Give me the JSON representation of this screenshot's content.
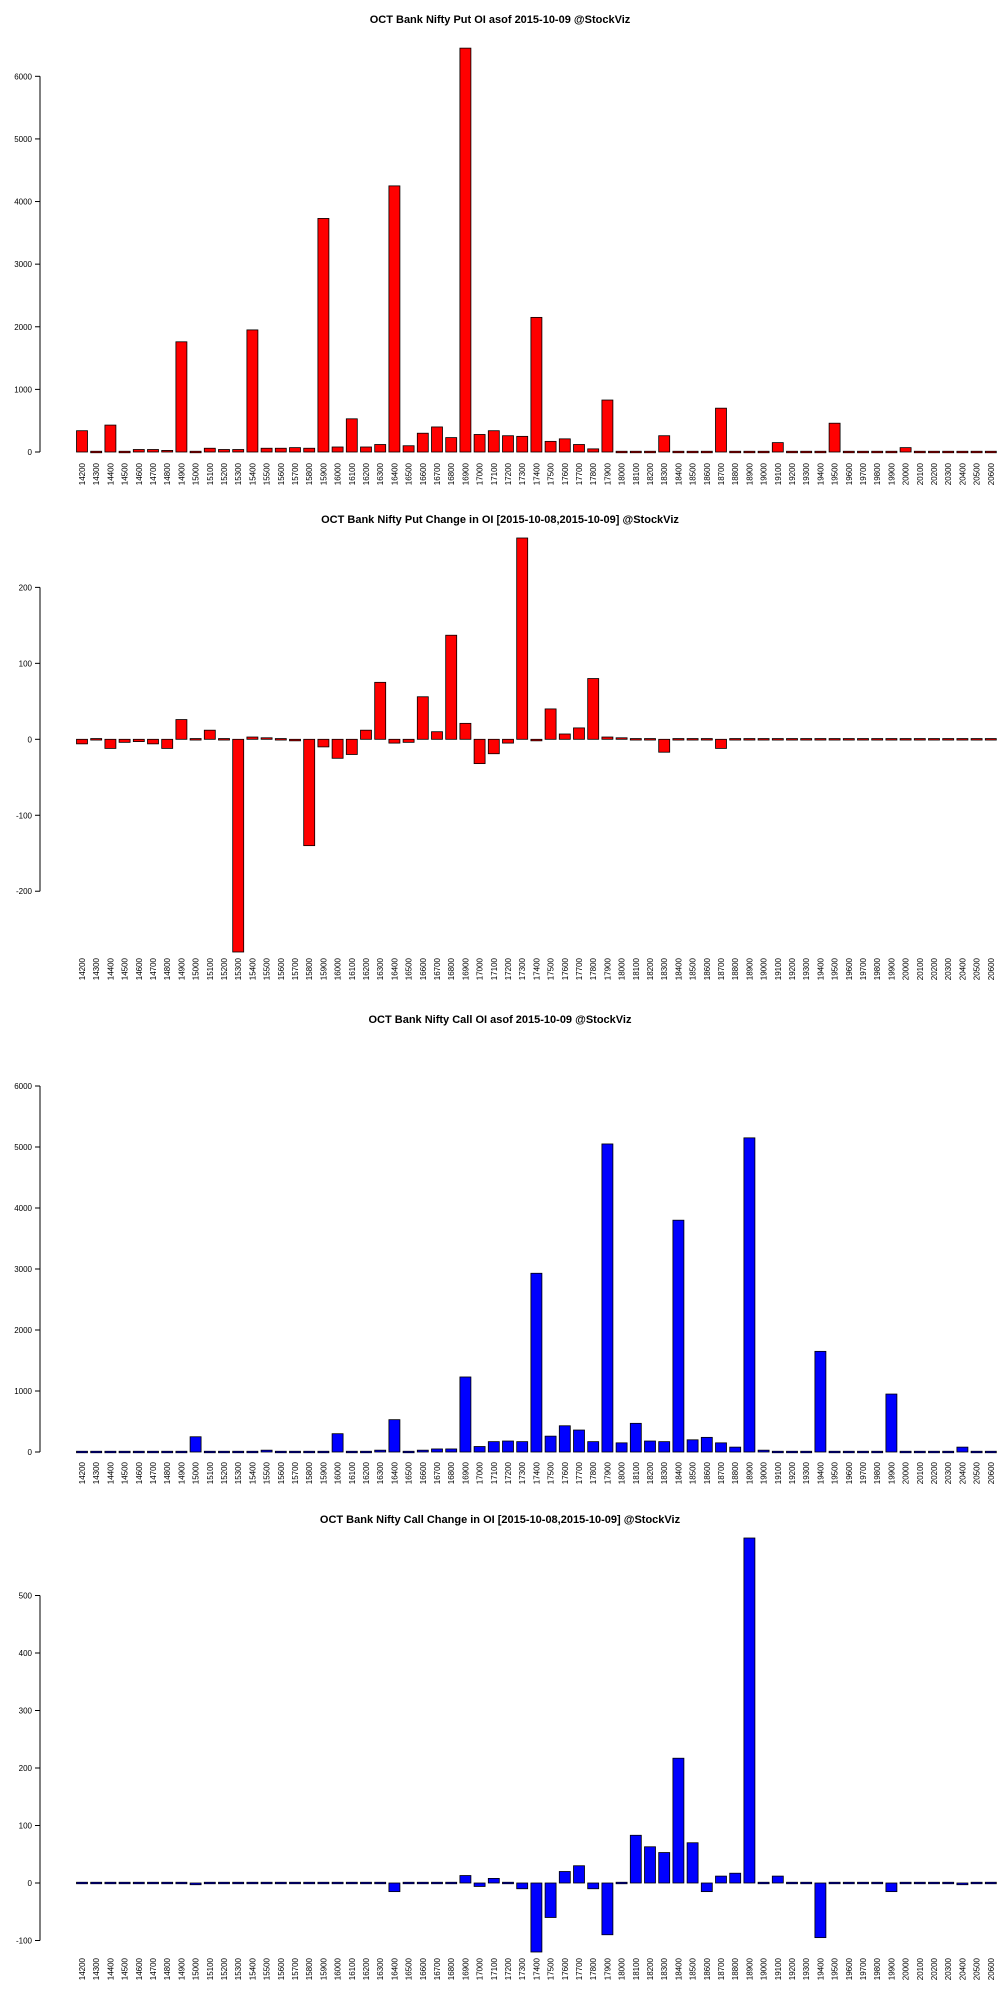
{
  "chart_data": [
    {
      "type": "bar",
      "title": "OCT Bank Nifty Put OI asof 2015-10-09 @StockViz",
      "fill": "#ff0000",
      "ylim": [
        0,
        6500
      ],
      "yticks": [
        0,
        1000,
        2000,
        3000,
        4000,
        5000,
        6000
      ],
      "categories": [
        "14200",
        "14300",
        "14400",
        "14500",
        "14600",
        "14700",
        "14800",
        "14900",
        "15000",
        "15100",
        "15200",
        "15300",
        "15400",
        "15500",
        "15600",
        "15700",
        "15800",
        "15900",
        "16000",
        "16100",
        "16200",
        "16300",
        "16400",
        "16500",
        "16600",
        "16700",
        "16800",
        "16900",
        "17000",
        "17100",
        "17200",
        "17300",
        "17400",
        "17500",
        "17600",
        "17700",
        "17800",
        "17900",
        "18000",
        "18100",
        "18200",
        "18300",
        "18400",
        "18500",
        "18600",
        "18700",
        "18800",
        "18900",
        "19000",
        "19100",
        "19200",
        "19300",
        "19400",
        "19500",
        "19600",
        "19700",
        "19800",
        "19900",
        "20000",
        "20100",
        "20200",
        "20300",
        "20400",
        "20500",
        "20600"
      ],
      "values": [
        340,
        10,
        430,
        20,
        40,
        40,
        25,
        1760,
        20,
        60,
        40,
        40,
        1950,
        60,
        60,
        70,
        60,
        3730,
        80,
        530,
        80,
        120,
        4250,
        100,
        300,
        400,
        230,
        6450,
        280,
        340,
        260,
        250,
        2150,
        170,
        210,
        120,
        50,
        830,
        10,
        20,
        10,
        260,
        10,
        10,
        10,
        700,
        10,
        10,
        10,
        150,
        10,
        10,
        10,
        460,
        10,
        10,
        10,
        10,
        70,
        0,
        0,
        0,
        0,
        0,
        0
      ]
    },
    {
      "type": "bar",
      "title": "OCT Bank Nifty Put Change in OI [2015-10-08,2015-10-09] @StockViz",
      "fill": "#ff0000",
      "ylim": [
        -280,
        265
      ],
      "yticks": [
        -200,
        -100,
        0,
        100,
        200
      ],
      "categories": [
        "14200",
        "14300",
        "14400",
        "14500",
        "14600",
        "14700",
        "14800",
        "14900",
        "15000",
        "15100",
        "15200",
        "15300",
        "15400",
        "15500",
        "15600",
        "15700",
        "15800",
        "15900",
        "16000",
        "16100",
        "16200",
        "16300",
        "16400",
        "16500",
        "16600",
        "16700",
        "16800",
        "16900",
        "17000",
        "17100",
        "17200",
        "17300",
        "17400",
        "17500",
        "17600",
        "17700",
        "17800",
        "17900",
        "18000",
        "18100",
        "18200",
        "18300",
        "18400",
        "18500",
        "18600",
        "18700",
        "18800",
        "18900",
        "19000",
        "19100",
        "19200",
        "19300",
        "19400",
        "19500",
        "19600",
        "19700",
        "19800",
        "19900",
        "20000",
        "20100",
        "20200",
        "20300",
        "20400",
        "20500",
        "20600"
      ],
      "values": [
        -6,
        0,
        -12,
        -4,
        -3,
        -6,
        -12,
        26,
        0,
        12,
        0,
        -280,
        3,
        2,
        -1,
        -2,
        -140,
        -10,
        -25,
        -20,
        12,
        75,
        -5,
        -4,
        56,
        10,
        137,
        21,
        -32,
        -19,
        -5,
        265,
        -2,
        40,
        7,
        15,
        80,
        3,
        2,
        0,
        0,
        -17,
        0,
        0,
        0,
        -12,
        0,
        0,
        0,
        0,
        0,
        0,
        0,
        0,
        0,
        0,
        0,
        0,
        0,
        0,
        0,
        0,
        0,
        0,
        0
      ]
    },
    {
      "type": "bar",
      "title": "OCT Bank Nifty Call OI asof 2015-10-09 @StockViz",
      "fill": "#0000ff",
      "ylim": [
        0,
        6000
      ],
      "yticks": [
        0,
        1000,
        2000,
        3000,
        4000,
        5000,
        6000
      ],
      "categories": [
        "14200",
        "14300",
        "14400",
        "14500",
        "14600",
        "14700",
        "14800",
        "14900",
        "15000",
        "15100",
        "15200",
        "15300",
        "15400",
        "15500",
        "15600",
        "15700",
        "15800",
        "15900",
        "16000",
        "16100",
        "16200",
        "16300",
        "16400",
        "16500",
        "16600",
        "16700",
        "16800",
        "16900",
        "17000",
        "17100",
        "17200",
        "17300",
        "17400",
        "17500",
        "17600",
        "17700",
        "17800",
        "17900",
        "18000",
        "18100",
        "18200",
        "18300",
        "18400",
        "18500",
        "18600",
        "18700",
        "18800",
        "18900",
        "19000",
        "19100",
        "19200",
        "19300",
        "19400",
        "19500",
        "19600",
        "19700",
        "19800",
        "19900",
        "20000",
        "20100",
        "20200",
        "20300",
        "20400",
        "20500",
        "20600"
      ],
      "values": [
        10,
        0,
        0,
        0,
        0,
        0,
        0,
        0,
        250,
        0,
        10,
        0,
        0,
        30,
        0,
        0,
        0,
        0,
        300,
        0,
        10,
        30,
        530,
        0,
        30,
        50,
        50,
        1230,
        90,
        170,
        180,
        170,
        2930,
        260,
        430,
        360,
        170,
        5050,
        150,
        470,
        180,
        170,
        3800,
        200,
        240,
        150,
        80,
        5150,
        30,
        10,
        0,
        0,
        1650,
        0,
        0,
        0,
        0,
        950,
        0,
        0,
        0,
        0,
        80,
        0,
        0
      ]
    },
    {
      "type": "bar",
      "title": "OCT Bank Nifty Call Change in OI [2015-10-08,2015-10-09] @StockViz",
      "fill": "#0000ff",
      "ylim": [
        -120,
        600
      ],
      "yticks": [
        -100,
        0,
        100,
        200,
        300,
        400,
        500
      ],
      "categories": [
        "14200",
        "14300",
        "14400",
        "14500",
        "14600",
        "14700",
        "14800",
        "14900",
        "15000",
        "15100",
        "15200",
        "15300",
        "15400",
        "15500",
        "15600",
        "15700",
        "15800",
        "15900",
        "16000",
        "16100",
        "16200",
        "16300",
        "16400",
        "16500",
        "16600",
        "16700",
        "16800",
        "16900",
        "17000",
        "17100",
        "17200",
        "17300",
        "17400",
        "17500",
        "17600",
        "17700",
        "17800",
        "17900",
        "18000",
        "18100",
        "18200",
        "18300",
        "18400",
        "18500",
        "18600",
        "18700",
        "18800",
        "18900",
        "19000",
        "19100",
        "19200",
        "19300",
        "19400",
        "19500",
        "19600",
        "19700",
        "19800",
        "19900",
        "20000",
        "20100",
        "20200",
        "20300",
        "20400",
        "20500",
        "20600"
      ],
      "values": [
        0,
        0,
        0,
        0,
        0,
        0,
        0,
        0,
        -3,
        0,
        0,
        0,
        0,
        0,
        0,
        0,
        0,
        0,
        0,
        0,
        0,
        0,
        -15,
        0,
        -2,
        0,
        2,
        13,
        -6,
        8,
        -2,
        -10,
        -120,
        -60,
        20,
        30,
        -10,
        -90,
        2,
        83,
        63,
        53,
        217,
        70,
        -15,
        12,
        17,
        600,
        0,
        12,
        0,
        0,
        -95,
        0,
        0,
        0,
        0,
        -15,
        0,
        0,
        0,
        0,
        -3,
        0,
        0
      ]
    }
  ]
}
